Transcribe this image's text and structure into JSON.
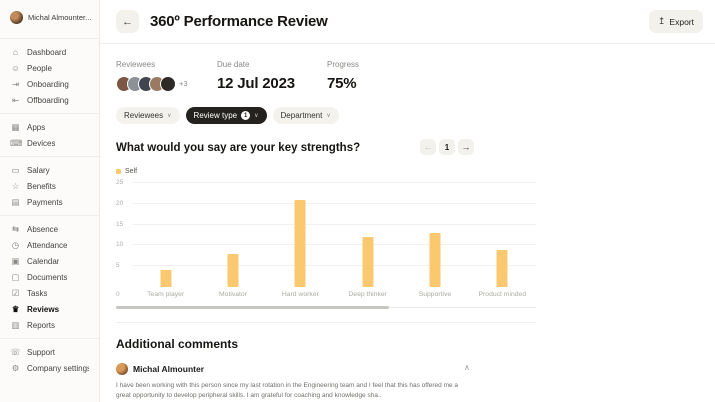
{
  "app": {
    "back_icon": "←",
    "title": "360º Performance Review",
    "export": {
      "icon": "↥",
      "label": "Export"
    }
  },
  "sidebar": {
    "user": {
      "name": "Michal Almounter..."
    },
    "groups": [
      {
        "items": [
          {
            "id": "dashboard",
            "icon": "⌂",
            "icon_name": "home-icon",
            "label": "Dashboard",
            "active": false
          },
          {
            "id": "people",
            "icon": "☺",
            "icon_name": "people-icon",
            "label": "People",
            "active": false
          },
          {
            "id": "onboarding",
            "icon": "⇥",
            "icon_name": "onboarding-icon",
            "label": "Onboarding",
            "active": false
          },
          {
            "id": "offboarding",
            "icon": "⇤",
            "icon_name": "offboarding-icon",
            "label": "Offboarding",
            "active": false
          }
        ]
      },
      {
        "items": [
          {
            "id": "apps",
            "icon": "▦",
            "icon_name": "apps-grid-icon",
            "label": "Apps",
            "active": false
          },
          {
            "id": "devices",
            "icon": "⌨",
            "icon_name": "device-icon",
            "label": "Devices",
            "active": false
          }
        ]
      },
      {
        "items": [
          {
            "id": "salary",
            "icon": "▭",
            "icon_name": "card-icon",
            "label": "Salary",
            "active": false
          },
          {
            "id": "benefits",
            "icon": "☆",
            "icon_name": "star-icon",
            "label": "Benefits",
            "active": false
          },
          {
            "id": "payments",
            "icon": "▤",
            "icon_name": "invoice-icon",
            "label": "Payments",
            "active": false
          }
        ]
      },
      {
        "items": [
          {
            "id": "absence",
            "icon": "⇆",
            "icon_name": "absence-icon",
            "label": "Absence",
            "active": false
          },
          {
            "id": "attendance",
            "icon": "◷",
            "icon_name": "clock-icon",
            "label": "Attendance",
            "active": false
          },
          {
            "id": "calendar",
            "icon": "▣",
            "icon_name": "calendar-icon",
            "label": "Calendar",
            "active": false
          },
          {
            "id": "documents",
            "icon": "▢",
            "icon_name": "document-icon",
            "label": "Documents",
            "active": false
          },
          {
            "id": "tasks",
            "icon": "☑",
            "icon_name": "tasks-icon",
            "label": "Tasks",
            "active": false
          },
          {
            "id": "reviews",
            "icon": "♛",
            "icon_name": "trophy-icon",
            "label": "Reviews",
            "active": true
          },
          {
            "id": "reports",
            "icon": "▥",
            "icon_name": "report-icon",
            "label": "Reports",
            "active": false
          }
        ]
      },
      {
        "items": [
          {
            "id": "support",
            "icon": "☏",
            "icon_name": "support-icon",
            "label": "Support",
            "active": false
          },
          {
            "id": "company-settings",
            "icon": "⚙",
            "icon_name": "gear-icon",
            "label": "Company settings",
            "active": false
          }
        ]
      }
    ]
  },
  "meta": {
    "reviewees": {
      "label": "Reviewees",
      "avatar_colors": [
        "#7c5844",
        "#8c9097",
        "#41454d",
        "#9a7b61",
        "#2e2a28"
      ],
      "overflow": "+3"
    },
    "due_date": {
      "label": "Due date",
      "value": "12 Jul 2023"
    },
    "progress": {
      "label": "Progress",
      "value": "75%"
    }
  },
  "filters": [
    {
      "id": "reviewees",
      "label": "Reviewees",
      "style": "light",
      "badge": null,
      "caret": "∨"
    },
    {
      "id": "review-type",
      "label": "Review type",
      "style": "dark",
      "badge": "1",
      "caret": "∨"
    },
    {
      "id": "department",
      "label": "Department",
      "style": "light",
      "badge": null,
      "caret": "∨"
    }
  ],
  "question": {
    "title": "What would you say are your key strengths?",
    "pagination": {
      "prev_icon": "←",
      "page": "1",
      "next_icon": "→"
    }
  },
  "chart_data": {
    "type": "bar",
    "title": "What would you say are your key strengths?",
    "categories": [
      "Team player",
      "Motivator",
      "Hard worker",
      "Deep thinker",
      "Supportive",
      "Product minded"
    ],
    "series": [
      {
        "name": "Self",
        "values": [
          4,
          8,
          21,
          12,
          13,
          9
        ]
      }
    ],
    "values": [
      4,
      8,
      21,
      12,
      13,
      9
    ],
    "ylim": [
      0,
      25
    ],
    "yticks": [
      0,
      5,
      10,
      15,
      20,
      25
    ],
    "grid": true,
    "legend_position": "top-left",
    "bar_color": "#f9c86f",
    "xlabel": "",
    "ylabel": ""
  },
  "comments": {
    "heading": "Additional comments",
    "items": [
      {
        "author": "Michal Almounter",
        "collapse_icon": "∧",
        "text": "I have been working with this person since my last rotation in the Engineering team and I feel that this has offered me a great opportunity to develop peripheral skills. I am grateful for coaching and knowledge sha.."
      }
    ]
  }
}
